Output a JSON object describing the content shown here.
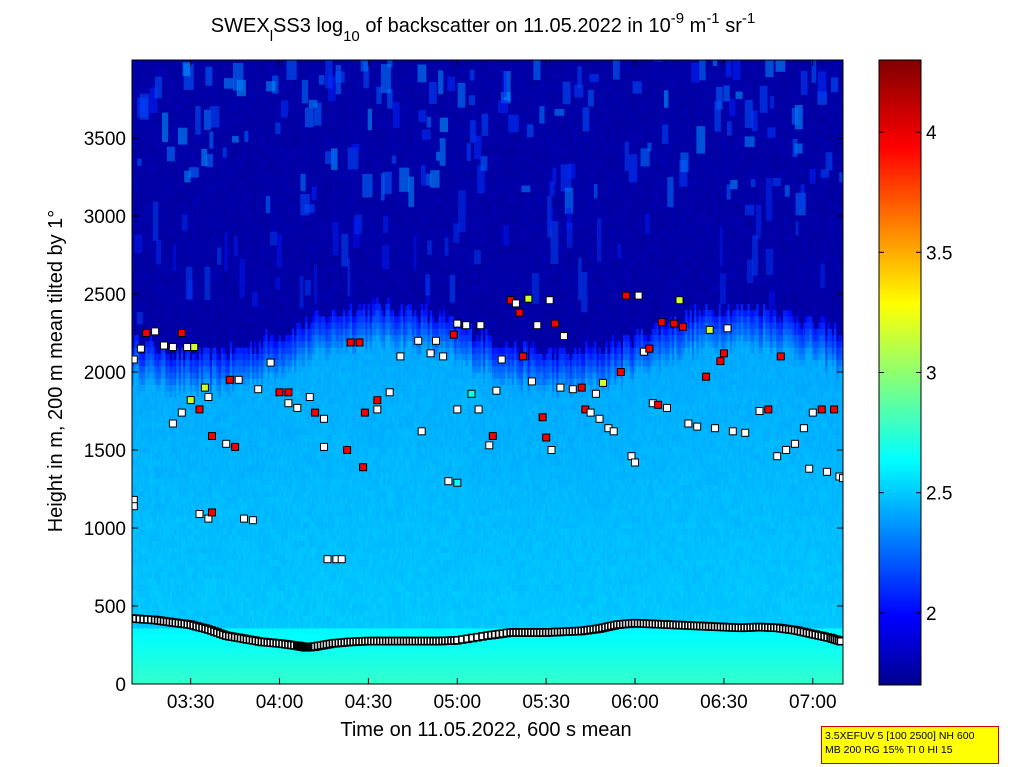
{
  "chart_data": {
    "type": "heatmap",
    "title": {
      "prefix": "SWEX",
      "sub": "l",
      "mid1": "SS3 log",
      "sub2": "10",
      "mid2": " of backscatter on 11.05.2022 in 10",
      "sup1": "-9",
      "mid3": " m",
      "sup2": "-1",
      "mid4": " sr",
      "sup3": "-1"
    },
    "xlabel": "Time on 11.05.2022, 600 s mean",
    "ylabel": "Height in m, 200 m mean tilted by 1°",
    "xlim_hours": [
      3.17,
      7.17
    ],
    "ylim": [
      0,
      4000
    ],
    "x_ticks": [
      "03:30",
      "04:00",
      "04:30",
      "05:00",
      "05:30",
      "06:00",
      "06:30",
      "07:00"
    ],
    "x_tick_hours": [
      3.5,
      4.0,
      4.5,
      5.0,
      5.5,
      6.0,
      6.5,
      7.0
    ],
    "y_ticks": [
      0,
      500,
      1000,
      1500,
      2000,
      2500,
      3000,
      3500
    ],
    "colorbar": {
      "range": [
        1.7,
        4.3
      ],
      "ticks": [
        2,
        2.5,
        3,
        3.5,
        4
      ],
      "tick_labels": [
        "2",
        "2.5",
        "3",
        "3.5",
        "4"
      ],
      "colormap": "jet"
    },
    "background_field": {
      "boundary_layer_top_m": 2250,
      "value_surface": 2.8,
      "value_mid": 2.45,
      "value_upper": 1.8
    },
    "cloud_base_lowest_layer": {
      "hours": [
        3.17,
        3.3,
        3.4,
        3.5,
        3.6,
        3.7,
        3.8,
        3.9,
        4.0,
        4.1,
        4.15,
        4.2,
        4.3,
        4.4,
        4.5,
        4.6,
        4.7,
        4.8,
        4.9,
        5.0,
        5.17,
        5.3,
        5.4,
        5.5,
        5.6,
        5.7,
        5.8,
        5.9,
        6.0,
        6.1,
        6.2,
        6.3,
        6.4,
        6.5,
        6.6,
        6.7,
        6.8,
        6.9,
        7.0,
        7.1,
        7.17
      ],
      "heights_m": [
        420,
        410,
        395,
        380,
        350,
        310,
        290,
        270,
        260,
        245,
        235,
        240,
        260,
        270,
        275,
        275,
        275,
        275,
        275,
        280,
        310,
        330,
        330,
        330,
        335,
        340,
        355,
        380,
        390,
        385,
        380,
        375,
        370,
        365,
        360,
        365,
        360,
        345,
        320,
        295,
        270
      ]
    },
    "cloud_base_points": [
      {
        "t": 3.18,
        "h": 2080,
        "v": 1.9
      },
      {
        "t": 3.22,
        "h": 2150,
        "v": 1.9
      },
      {
        "t": 3.25,
        "h": 2250,
        "v": 4.0
      },
      {
        "t": 3.3,
        "h": 2260,
        "v": 1.9
      },
      {
        "t": 3.35,
        "h": 2170,
        "v": 1.9
      },
      {
        "t": 3.4,
        "h": 2160,
        "v": 1.9
      },
      {
        "t": 3.45,
        "h": 2250,
        "v": 4.0
      },
      {
        "t": 3.48,
        "h": 2160,
        "v": 1.9
      },
      {
        "t": 3.52,
        "h": 2160,
        "v": 3.2
      },
      {
        "t": 3.18,
        "h": 1180,
        "v": 1.9
      },
      {
        "t": 3.18,
        "h": 1140,
        "v": 1.9
      },
      {
        "t": 3.4,
        "h": 1670,
        "v": 1.9
      },
      {
        "t": 3.45,
        "h": 1740,
        "v": 1.9
      },
      {
        "t": 3.5,
        "h": 1820,
        "v": 3.2
      },
      {
        "t": 3.55,
        "h": 1760,
        "v": 4.0
      },
      {
        "t": 3.58,
        "h": 1900,
        "v": 3.2
      },
      {
        "t": 3.6,
        "h": 1840,
        "v": 1.9
      },
      {
        "t": 3.62,
        "h": 1590,
        "v": 4.0
      },
      {
        "t": 3.7,
        "h": 1540,
        "v": 1.9
      },
      {
        "t": 3.75,
        "h": 1520,
        "v": 4.0
      },
      {
        "t": 3.55,
        "h": 1090,
        "v": 1.9
      },
      {
        "t": 3.6,
        "h": 1060,
        "v": 1.9
      },
      {
        "t": 3.62,
        "h": 1100,
        "v": 4.0
      },
      {
        "t": 3.72,
        "h": 1950,
        "v": 4.0
      },
      {
        "t": 3.77,
        "h": 1950,
        "v": 1.9
      },
      {
        "t": 3.8,
        "h": 1060,
        "v": 1.9
      },
      {
        "t": 3.85,
        "h": 1050,
        "v": 1.9
      },
      {
        "t": 3.88,
        "h": 1890,
        "v": 1.9
      },
      {
        "t": 3.95,
        "h": 2060,
        "v": 1.9
      },
      {
        "t": 4.0,
        "h": 1870,
        "v": 4.0
      },
      {
        "t": 4.05,
        "h": 1870,
        "v": 4.0
      },
      {
        "t": 4.05,
        "h": 1800,
        "v": 1.9
      },
      {
        "t": 4.1,
        "h": 1770,
        "v": 1.9
      },
      {
        "t": 4.17,
        "h": 1840,
        "v": 1.9
      },
      {
        "t": 4.2,
        "h": 1740,
        "v": 4.0
      },
      {
        "t": 4.25,
        "h": 1700,
        "v": 1.9
      },
      {
        "t": 4.25,
        "h": 1520,
        "v": 1.9
      },
      {
        "t": 4.27,
        "h": 800,
        "v": 1.9
      },
      {
        "t": 4.32,
        "h": 800,
        "v": 1.9
      },
      {
        "t": 4.35,
        "h": 800,
        "v": 1.9
      },
      {
        "t": 4.38,
        "h": 1500,
        "v": 4.0
      },
      {
        "t": 4.4,
        "h": 2190,
        "v": 4.0
      },
      {
        "t": 4.45,
        "h": 2190,
        "v": 4.0
      },
      {
        "t": 4.47,
        "h": 1390,
        "v": 4.0
      },
      {
        "t": 4.48,
        "h": 1740,
        "v": 4.0
      },
      {
        "t": 4.55,
        "h": 1760,
        "v": 1.9
      },
      {
        "t": 4.55,
        "h": 1820,
        "v": 4.0
      },
      {
        "t": 4.62,
        "h": 1870,
        "v": 1.9
      },
      {
        "t": 4.68,
        "h": 2100,
        "v": 1.9
      },
      {
        "t": 4.78,
        "h": 2200,
        "v": 1.9
      },
      {
        "t": 4.8,
        "h": 1620,
        "v": 1.9
      },
      {
        "t": 4.85,
        "h": 2120,
        "v": 1.9
      },
      {
        "t": 4.88,
        "h": 2200,
        "v": 1.9
      },
      {
        "t": 4.92,
        "h": 2100,
        "v": 1.9
      },
      {
        "t": 4.98,
        "h": 2240,
        "v": 4.0
      },
      {
        "t": 4.95,
        "h": 1300,
        "v": 1.9
      },
      {
        "t": 5.0,
        "h": 1290,
        "v": 2.7
      },
      {
        "t": 5.0,
        "h": 1760,
        "v": 1.9
      },
      {
        "t": 5.0,
        "h": 2310,
        "v": 1.9
      },
      {
        "t": 5.05,
        "h": 2300,
        "v": 1.9
      },
      {
        "t": 5.08,
        "h": 1860,
        "v": 2.7
      },
      {
        "t": 5.12,
        "h": 1760,
        "v": 1.9
      },
      {
        "t": 5.13,
        "h": 2300,
        "v": 1.9
      },
      {
        "t": 5.18,
        "h": 1530,
        "v": 1.9
      },
      {
        "t": 5.2,
        "h": 1590,
        "v": 4.0
      },
      {
        "t": 5.22,
        "h": 1880,
        "v": 1.9
      },
      {
        "t": 5.25,
        "h": 2080,
        "v": 1.9
      },
      {
        "t": 5.3,
        "h": 2460,
        "v": 4.0
      },
      {
        "t": 5.33,
        "h": 2440,
        "v": 1.9
      },
      {
        "t": 5.35,
        "h": 2380,
        "v": 4.0
      },
      {
        "t": 5.37,
        "h": 2100,
        "v": 4.0
      },
      {
        "t": 5.4,
        "h": 2470,
        "v": 3.2
      },
      {
        "t": 5.42,
        "h": 1940,
        "v": 1.9
      },
      {
        "t": 5.45,
        "h": 2300,
        "v": 1.9
      },
      {
        "t": 5.48,
        "h": 1710,
        "v": 4.0
      },
      {
        "t": 5.5,
        "h": 1580,
        "v": 4.0
      },
      {
        "t": 5.52,
        "h": 2460,
        "v": 1.9
      },
      {
        "t": 5.53,
        "h": 1500,
        "v": 1.9
      },
      {
        "t": 5.55,
        "h": 2310,
        "v": 4.0
      },
      {
        "t": 5.58,
        "h": 1900,
        "v": 1.9
      },
      {
        "t": 5.6,
        "h": 2230,
        "v": 1.9
      },
      {
        "t": 5.65,
        "h": 1890,
        "v": 1.9
      },
      {
        "t": 5.7,
        "h": 1900,
        "v": 4.0
      },
      {
        "t": 5.72,
        "h": 1760,
        "v": 4.0
      },
      {
        "t": 5.75,
        "h": 1740,
        "v": 1.9
      },
      {
        "t": 5.78,
        "h": 1860,
        "v": 1.9
      },
      {
        "t": 5.8,
        "h": 1700,
        "v": 1.9
      },
      {
        "t": 5.82,
        "h": 1930,
        "v": 3.2
      },
      {
        "t": 5.85,
        "h": 1640,
        "v": 1.9
      },
      {
        "t": 5.88,
        "h": 1620,
        "v": 1.9
      },
      {
        "t": 5.92,
        "h": 2000,
        "v": 4.0
      },
      {
        "t": 5.95,
        "h": 2490,
        "v": 4.0
      },
      {
        "t": 5.98,
        "h": 1460,
        "v": 1.9
      },
      {
        "t": 6.0,
        "h": 1420,
        "v": 1.9
      },
      {
        "t": 6.02,
        "h": 2490,
        "v": 1.9
      },
      {
        "t": 6.05,
        "h": 2130,
        "v": 1.9
      },
      {
        "t": 6.08,
        "h": 2150,
        "v": 4.0
      },
      {
        "t": 6.1,
        "h": 1800,
        "v": 1.9
      },
      {
        "t": 6.13,
        "h": 1790,
        "v": 4.0
      },
      {
        "t": 6.15,
        "h": 2320,
        "v": 4.0
      },
      {
        "t": 6.18,
        "h": 1770,
        "v": 1.9
      },
      {
        "t": 6.22,
        "h": 2310,
        "v": 4.0
      },
      {
        "t": 6.25,
        "h": 2460,
        "v": 3.2
      },
      {
        "t": 6.27,
        "h": 2290,
        "v": 4.0
      },
      {
        "t": 6.3,
        "h": 1670,
        "v": 1.9
      },
      {
        "t": 6.35,
        "h": 1650,
        "v": 1.9
      },
      {
        "t": 6.4,
        "h": 1970,
        "v": 4.0
      },
      {
        "t": 6.42,
        "h": 2270,
        "v": 3.2
      },
      {
        "t": 6.45,
        "h": 1640,
        "v": 1.9
      },
      {
        "t": 6.48,
        "h": 2070,
        "v": 4.0
      },
      {
        "t": 6.5,
        "h": 2120,
        "v": 4.0
      },
      {
        "t": 6.52,
        "h": 2280,
        "v": 1.9
      },
      {
        "t": 6.55,
        "h": 1620,
        "v": 1.9
      },
      {
        "t": 6.62,
        "h": 1610,
        "v": 1.9
      },
      {
        "t": 6.7,
        "h": 1750,
        "v": 1.9
      },
      {
        "t": 6.75,
        "h": 1760,
        "v": 4.0
      },
      {
        "t": 6.8,
        "h": 1460,
        "v": 1.9
      },
      {
        "t": 6.82,
        "h": 2100,
        "v": 4.0
      },
      {
        "t": 6.85,
        "h": 1500,
        "v": 1.9
      },
      {
        "t": 6.9,
        "h": 1540,
        "v": 1.9
      },
      {
        "t": 6.95,
        "h": 1640,
        "v": 1.9
      },
      {
        "t": 6.98,
        "h": 1380,
        "v": 1.9
      },
      {
        "t": 7.0,
        "h": 1740,
        "v": 1.9
      },
      {
        "t": 7.05,
        "h": 1760,
        "v": 4.0
      },
      {
        "t": 7.08,
        "h": 1360,
        "v": 1.9
      },
      {
        "t": 7.12,
        "h": 1760,
        "v": 4.0
      },
      {
        "t": 7.15,
        "h": 1330,
        "v": 1.9
      },
      {
        "t": 7.17,
        "h": 1320,
        "v": 1.9
      }
    ]
  },
  "info_box": {
    "line1": "3.5XEFUV 5 [100 2500] NH 600",
    "line2": "MB 200 RG 15% TI 0 HI 15"
  }
}
